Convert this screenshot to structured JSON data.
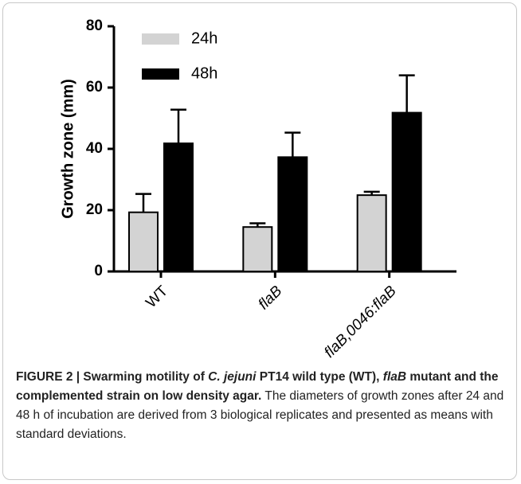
{
  "chart_data": {
    "type": "bar",
    "ylabel": "Growth zone (mm)",
    "categories": [
      "WT",
      "flaB",
      "flaB,0046:flaB"
    ],
    "category_style": [
      "normal",
      "italic",
      "italic"
    ],
    "series": [
      {
        "name": "24h",
        "color": "#d3d3d3",
        "values": [
          19.3,
          14.5,
          24.9
        ],
        "errors": [
          6,
          1.2,
          1.1
        ]
      },
      {
        "name": "48h",
        "color": "#000000",
        "values": [
          41.8,
          37.3,
          51.8
        ],
        "errors": [
          11,
          8,
          12.2
        ]
      }
    ],
    "ylim": [
      0,
      80
    ],
    "yticks": [
      0,
      20,
      40,
      60,
      80
    ],
    "grid": false,
    "legend": "upper left"
  },
  "caption": [
    {
      "text": "FIGURE 2 | Swarming motility of ",
      "style": "bold"
    },
    {
      "text": "C. jejuni",
      "style": "bolditalic"
    },
    {
      "text": " PT14 wild type (WT), ",
      "style": "bold"
    },
    {
      "text": "flaB",
      "style": "bolditalic"
    },
    {
      "text": " mutant and the complemented strain on low density agar.",
      "style": "bold"
    },
    {
      "text": " The diameters of growth zones after 24 and 48 h of incubation are derived from 3 biological replicates and presented as means with standard deviations.",
      "style": "normal"
    }
  ]
}
